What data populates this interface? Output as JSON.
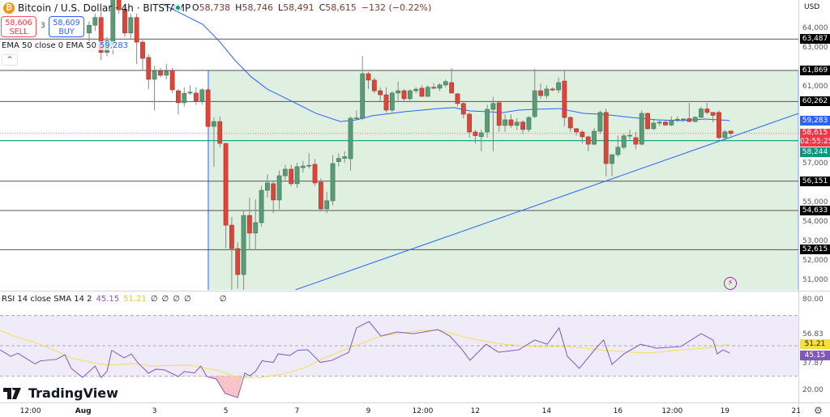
{
  "header": {
    "symbol": "Bitcoin / U.S. Dollar · 4h · BITSTAMP",
    "open_label": "O",
    "open": "58,738",
    "high_label": "H",
    "high": "58,746",
    "low_label": "L",
    "low": "58,491",
    "close_label": "C",
    "close": "58,615",
    "change": "−132 (−0.22%)",
    "coin_icon": "bitcoin-icon",
    "market_status": "open"
  },
  "trade": {
    "sell_price": "58,606",
    "sell_label": "SELL",
    "spread": "3",
    "buy_price": "58,609",
    "buy_label": "BUY"
  },
  "ema_legend": {
    "label": "EMA 50 close 0 EMA 50",
    "value": "59,283"
  },
  "rsi_legend": {
    "label": "RSI 14 close SMA 14 2",
    "rsi": "45.15",
    "sma": "51.21",
    "na": [
      "∅",
      "∅",
      "∅",
      "∅",
      "∅"
    ]
  },
  "logo": "TradingView",
  "price_axis": {
    "currency": "USD",
    "ticks": [
      "64,000",
      "63,000",
      "61,000",
      "57,000",
      "55,000",
      "54,000",
      "53,000",
      "52,000",
      "51,000"
    ],
    "tick_values": [
      64000,
      63000,
      61000,
      57000,
      55000,
      54000,
      53000,
      52000,
      51000
    ]
  },
  "rsi_axis": {
    "ticks": [
      "80.00",
      "56.83",
      "37.87",
      "20.00"
    ],
    "tick_values": [
      80,
      56.83,
      37.87,
      20
    ],
    "upper_band": 70,
    "lower_band": 30
  },
  "levels": [
    {
      "label": "63,487",
      "value": 63487
    },
    {
      "label": "61,869",
      "value": 61869
    },
    {
      "label": "60,262",
      "value": 60262
    },
    {
      "label": "56,151",
      "value": 56151
    },
    {
      "label": "54,633",
      "value": 54633
    },
    {
      "label": "52,615",
      "value": 52615
    }
  ],
  "support": {
    "label": "58,244",
    "value": 58244,
    "color": "#089981"
  },
  "ema_tag": {
    "label": "59,283",
    "value": 59283,
    "color": "#2962ff"
  },
  "last_price": {
    "label": "58,615",
    "value": 58615,
    "countdown": "02:55:25",
    "color": "#f23645"
  },
  "rsi_tags": {
    "sma": "51.21",
    "sma_value": 51.21,
    "rsi": "45.15",
    "rsi_value": 45.15
  },
  "time_axis": [
    {
      "label": "12:00",
      "bar": -10
    },
    {
      "label": "Aug",
      "bar": -1
    },
    {
      "label": "3",
      "bar": 11
    },
    {
      "label": "5",
      "bar": 23
    },
    {
      "label": "7",
      "bar": 35
    },
    {
      "label": "9",
      "bar": 47
    },
    {
      "label": "12:00",
      "bar": 56
    },
    {
      "label": "12",
      "bar": 65
    },
    {
      "label": "14",
      "bar": 77
    },
    {
      "label": "16",
      "bar": 89
    },
    {
      "label": "12:00",
      "bar": 98
    },
    {
      "label": "19",
      "bar": 107
    },
    {
      "label": "21",
      "bar": 119
    }
  ],
  "colors": {
    "up": "#5b9a76",
    "down": "#d9473a",
    "ema": "#2962ff",
    "rsi": "#7e57c2",
    "rsi_sma": "#f5e050",
    "zone": "#dff0e0"
  },
  "chart_data": {
    "type": "candlestick",
    "candles_ohlc": [
      [
        63800,
        64400,
        63300,
        64200
      ],
      [
        64200,
        64800,
        63900,
        64600
      ],
      [
        64600,
        64900,
        62400,
        62800
      ],
      [
        62800,
        63600,
        62600,
        63400
      ],
      [
        63200,
        66200,
        62700,
        66000
      ],
      [
        66000,
        66300,
        64800,
        65000
      ],
      [
        65000,
        65200,
        63600,
        63800
      ],
      [
        63800,
        64800,
        63500,
        64600
      ],
      [
        64600,
        64800,
        62200,
        63330
      ],
      [
        63330,
        63500,
        61900,
        62490
      ],
      [
        62540,
        62700,
        60900,
        61410
      ],
      [
        61410,
        62100,
        59800,
        61830
      ],
      [
        61830,
        62000,
        61500,
        61620
      ],
      [
        61620,
        62200,
        61400,
        61830
      ],
      [
        61870,
        62000,
        60700,
        60870
      ],
      [
        60820,
        60900,
        59600,
        60200
      ],
      [
        60200,
        61000,
        60000,
        60690
      ],
      [
        60700,
        61100,
        60600,
        60750
      ],
      [
        60700,
        61000,
        60100,
        60280
      ],
      [
        60280,
        60950,
        60100,
        60870
      ],
      [
        60870,
        60950,
        58900,
        58980
      ],
      [
        58980,
        59450,
        56900,
        59230
      ],
      [
        59230,
        59500,
        57900,
        58100
      ],
      [
        58100,
        58100,
        52700,
        53880
      ],
      [
        53880,
        54300,
        50200,
        52670
      ],
      [
        52670,
        53000,
        50600,
        51330
      ],
      [
        51330,
        54600,
        50300,
        54380
      ],
      [
        54380,
        55300,
        52600,
        53470
      ],
      [
        53470,
        55200,
        52600,
        54010
      ],
      [
        54010,
        55900,
        53800,
        55680
      ],
      [
        55680,
        56500,
        55300,
        56060
      ],
      [
        56020,
        56200,
        54500,
        55180
      ],
      [
        55180,
        56700,
        54700,
        56430
      ],
      [
        56430,
        57000,
        56200,
        56770
      ],
      [
        56770,
        57000,
        55900,
        56020
      ],
      [
        56020,
        57100,
        55800,
        56900
      ],
      [
        56850,
        57200,
        56600,
        56930
      ],
      [
        56950,
        57600,
        56800,
        56970
      ],
      [
        57020,
        57300,
        55900,
        56060
      ],
      [
        56100,
        56300,
        54600,
        54720
      ],
      [
        54720,
        55600,
        54500,
        55140
      ],
      [
        55140,
        57500,
        54900,
        57060
      ],
      [
        57160,
        57600,
        56900,
        57330
      ],
      [
        57330,
        57700,
        57100,
        57420
      ],
      [
        57310,
        59500,
        56700,
        59400
      ],
      [
        59400,
        59800,
        59300,
        59420
      ],
      [
        59400,
        62600,
        59300,
        61700
      ],
      [
        61700,
        61800,
        60900,
        61370
      ],
      [
        61370,
        61500,
        60700,
        60820
      ],
      [
        60820,
        61000,
        60300,
        60610
      ],
      [
        60610,
        61000,
        59700,
        59820
      ],
      [
        59820,
        60800,
        59700,
        60700
      ],
      [
        60700,
        61300,
        60300,
        60820
      ],
      [
        60820,
        60900,
        60300,
        60410
      ],
      [
        60410,
        60900,
        60300,
        60820
      ],
      [
        60820,
        61000,
        60700,
        60900
      ],
      [
        60950,
        61100,
        60500,
        60530
      ],
      [
        60530,
        61100,
        60500,
        61000
      ],
      [
        61000,
        61200,
        60900,
        60950
      ],
      [
        60950,
        61200,
        60800,
        61120
      ],
      [
        61120,
        61400,
        61000,
        61290
      ],
      [
        61240,
        62000,
        60900,
        60700
      ],
      [
        60660,
        60700,
        60000,
        60160
      ],
      [
        60160,
        60300,
        59400,
        59610
      ],
      [
        59610,
        59700,
        58400,
        58690
      ],
      [
        58690,
        58800,
        58100,
        58500
      ],
      [
        58450,
        58800,
        57700,
        58650
      ],
      [
        58690,
        60100,
        58400,
        59860
      ],
      [
        59860,
        60500,
        57700,
        60160
      ],
      [
        60200,
        60300,
        58700,
        59030
      ],
      [
        59030,
        59600,
        58700,
        59320
      ],
      [
        59320,
        59600,
        58900,
        59030
      ],
      [
        59030,
        59400,
        58800,
        59200
      ],
      [
        59200,
        59300,
        58600,
        58820
      ],
      [
        58820,
        59500,
        58700,
        59440
      ],
      [
        59490,
        61950,
        59400,
        60820
      ],
      [
        60820,
        61200,
        60400,
        60570
      ],
      [
        60570,
        61100,
        60400,
        60910
      ],
      [
        60910,
        61000,
        60800,
        60860
      ],
      [
        60860,
        61500,
        60700,
        61240
      ],
      [
        61320,
        61850,
        59000,
        59440
      ],
      [
        59440,
        59500,
        58700,
        58900
      ],
      [
        58860,
        58900,
        58500,
        58690
      ],
      [
        58690,
        58800,
        58100,
        58440
      ],
      [
        58440,
        58500,
        57700,
        58060
      ],
      [
        58060,
        58900,
        58000,
        58730
      ],
      [
        58730,
        59800,
        58600,
        59700
      ],
      [
        59700,
        59900,
        56400,
        57060
      ],
      [
        57060,
        57500,
        56400,
        57520
      ],
      [
        57520,
        58500,
        57400,
        57900
      ],
      [
        57900,
        58600,
        57800,
        58490
      ],
      [
        58490,
        58800,
        58300,
        58520
      ],
      [
        58400,
        58700,
        57800,
        58060
      ],
      [
        58060,
        59800,
        58000,
        59650
      ],
      [
        59650,
        59700,
        58800,
        58860
      ],
      [
        58860,
        59300,
        58800,
        59150
      ],
      [
        59150,
        59300,
        59000,
        59200
      ],
      [
        59200,
        59300,
        59000,
        59050
      ],
      [
        59050,
        59500,
        59000,
        59300
      ],
      [
        59300,
        59500,
        59200,
        59350
      ],
      [
        59350,
        59400,
        59200,
        59360
      ],
      [
        59380,
        60200,
        59200,
        59230
      ],
      [
        59230,
        59500,
        59200,
        59450
      ],
      [
        59450,
        60000,
        59400,
        59880
      ],
      [
        59880,
        60200,
        59600,
        59700
      ],
      [
        59700,
        59700,
        59200,
        59550
      ],
      [
        59700,
        59800,
        58300,
        58400
      ],
      [
        58400,
        58800,
        58300,
        58700
      ],
      [
        58738,
        58746,
        58491,
        58615
      ]
    ],
    "first_bar": 0,
    "ema50": [
      [
        12.3,
        65300
      ],
      [
        19.1,
        64250
      ],
      [
        21.8,
        63410
      ],
      [
        24.6,
        62370
      ],
      [
        27.3,
        61530
      ],
      [
        30,
        60900
      ],
      [
        34.1,
        60280
      ],
      [
        38.2,
        59650
      ],
      [
        42.3,
        59230
      ],
      [
        45,
        59320
      ],
      [
        47.7,
        59530
      ],
      [
        53.2,
        59740
      ],
      [
        58.7,
        59900
      ],
      [
        61.4,
        59950
      ],
      [
        64.1,
        59780
      ],
      [
        66.8,
        59740
      ],
      [
        69.6,
        59690
      ],
      [
        72.3,
        59820
      ],
      [
        75,
        59860
      ],
      [
        79.1,
        59900
      ],
      [
        83.2,
        59650
      ],
      [
        86,
        59610
      ],
      [
        88.7,
        59530
      ],
      [
        91.4,
        59440
      ],
      [
        95.5,
        59320
      ],
      [
        99.6,
        59280
      ],
      [
        103.7,
        59360
      ],
      [
        107.8,
        59283
      ]
    ],
    "trendline": [
      [
        34.7,
        50540
      ],
      [
        119.4,
        59650
      ]
    ],
    "zone": {
      "from_bar": 20.05,
      "to_bar": 119.4,
      "top": 61869
    },
    "rsi": [
      [
        -15,
        47.3
      ],
      [
        -13.2,
        43
      ],
      [
        -12,
        45
      ],
      [
        -9.1,
        38
      ],
      [
        -8.2,
        40
      ],
      [
        -5.5,
        41
      ],
      [
        -4.1,
        44
      ],
      [
        -3,
        35
      ],
      [
        -1.1,
        29
      ],
      [
        1,
        36.6
      ],
      [
        2,
        29
      ],
      [
        3,
        33
      ],
      [
        3.8,
        47
      ],
      [
        5.9,
        42
      ],
      [
        7.1,
        44.6
      ],
      [
        8.2,
        38.7
      ],
      [
        10,
        31.8
      ],
      [
        11.2,
        34.5
      ],
      [
        12.7,
        34
      ],
      [
        15,
        29.6
      ],
      [
        16,
        33
      ],
      [
        17.7,
        32
      ],
      [
        18.8,
        36.6
      ],
      [
        19.8,
        29.6
      ],
      [
        21.4,
        28
      ],
      [
        22.9,
        18.4
      ],
      [
        25,
        15.7
      ],
      [
        26.2,
        32
      ],
      [
        27,
        30
      ],
      [
        28,
        33
      ],
      [
        29.1,
        40
      ],
      [
        31,
        39
      ],
      [
        31.8,
        44.6
      ],
      [
        33.8,
        43.6
      ],
      [
        35.1,
        47
      ],
      [
        36.8,
        47.3
      ],
      [
        38.9,
        39
      ],
      [
        40.9,
        40.4
      ],
      [
        43.7,
        45.7
      ],
      [
        45,
        61.8
      ],
      [
        47.1,
        66
      ],
      [
        49.1,
        56.4
      ],
      [
        51.8,
        59.1
      ],
      [
        54.6,
        58
      ],
      [
        58.7,
        60.7
      ],
      [
        60.7,
        56.4
      ],
      [
        62.8,
        47.3
      ],
      [
        64.1,
        40.4
      ],
      [
        66.8,
        51
      ],
      [
        68.9,
        45.7
      ],
      [
        72.3,
        47.3
      ],
      [
        75,
        53.8
      ],
      [
        77.1,
        51
      ],
      [
        79.1,
        61.8
      ],
      [
        80.5,
        43
      ],
      [
        82.5,
        35
      ],
      [
        85.3,
        48.4
      ],
      [
        86.6,
        53.8
      ],
      [
        88,
        37.7
      ],
      [
        90,
        44.6
      ],
      [
        92.8,
        51
      ],
      [
        95.5,
        48.4
      ],
      [
        99.6,
        49.5
      ],
      [
        103,
        58
      ],
      [
        105,
        53.8
      ],
      [
        105.7,
        44.6
      ],
      [
        106.7,
        47.3
      ],
      [
        107.8,
        45.15
      ]
    ],
    "rsi_sma": [
      [
        -15,
        60.2
      ],
      [
        -12.7,
        56.4
      ],
      [
        -9.1,
        52.1
      ],
      [
        -5.9,
        47.3
      ],
      [
        -3.1,
        42
      ],
      [
        0,
        39.3
      ],
      [
        3.1,
        37.2
      ],
      [
        7.8,
        38.2
      ],
      [
        10.5,
        36.6
      ],
      [
        16.8,
        37.2
      ],
      [
        21.4,
        33.9
      ],
      [
        25,
        29.1
      ],
      [
        28.2,
        28.6
      ],
      [
        32.7,
        31.3
      ],
      [
        36.4,
        35.5
      ],
      [
        39.6,
        42
      ],
      [
        43.7,
        48.4
      ],
      [
        49.1,
        56.4
      ],
      [
        55.9,
        60.2
      ],
      [
        59.3,
        60.2
      ],
      [
        64.1,
        54.8
      ],
      [
        69.6,
        51
      ],
      [
        75,
        49.5
      ],
      [
        80.5,
        49.5
      ],
      [
        86,
        47.3
      ],
      [
        91.4,
        45.7
      ],
      [
        94.1,
        45.2
      ],
      [
        99.6,
        47.3
      ],
      [
        103.7,
        48.4
      ],
      [
        107.8,
        51.21
      ]
    ]
  }
}
